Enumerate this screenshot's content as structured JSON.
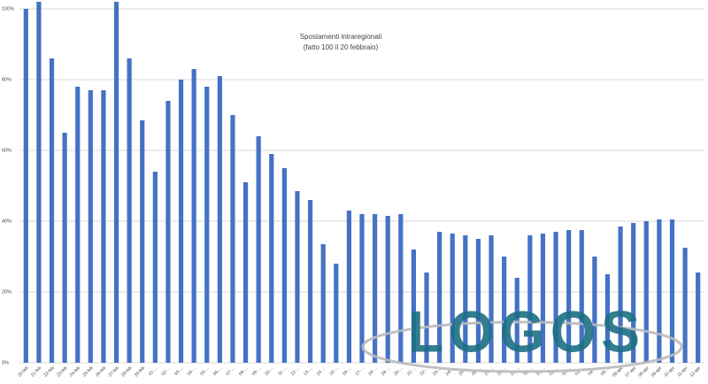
{
  "chart_data": {
    "type": "bar",
    "title": "Spostamenti intraregionali",
    "subtitle": "(fatto 100 il 20 febbraio)",
    "watermark": "LOGOS",
    "categories": [
      "20-feb",
      "21-feb",
      "22-feb",
      "23-feb",
      "24-feb",
      "25-feb",
      "26-feb",
      "27-feb",
      "28-feb",
      "29-feb",
      "01-…",
      "02-…",
      "03-…",
      "04-…",
      "05-…",
      "06-…",
      "07-…",
      "08-…",
      "09-…",
      "10-…",
      "11-…",
      "12-…",
      "13-…",
      "14-…",
      "15-…",
      "16-…",
      "17-…",
      "18-…",
      "19-…",
      "20-…",
      "21-…",
      "22-…",
      "23-…",
      "24-…",
      "25-…",
      "26-…",
      "27-…",
      "28-…",
      "29-…",
      "30-…",
      "31-…",
      "01-…",
      "02-…",
      "03-…",
      "04-…",
      "05-…",
      "06-apr",
      "07-apr",
      "08-apr",
      "09-apr",
      "10-apr",
      "11-apr",
      "12-apr"
    ],
    "values": [
      100,
      102,
      86,
      65,
      78,
      77,
      77,
      102,
      86,
      68.5,
      54,
      74,
      80,
      83,
      78,
      81,
      70,
      51,
      64,
      59,
      55,
      48.5,
      46,
      33.5,
      28,
      43,
      42,
      42,
      41.5,
      42,
      32,
      25.5,
      37,
      36.5,
      36,
      35,
      36,
      30,
      24,
      36,
      36.5,
      37,
      37.5,
      37.5,
      30,
      25,
      38.5,
      39.5,
      40,
      40.5,
      40.5,
      32.5,
      25.5
    ],
    "color": "#4472c4",
    "ylim": [
      0,
      102
    ],
    "yticks": [
      {
        "value": 0,
        "label": "0%"
      },
      {
        "value": 20,
        "label": "20%"
      },
      {
        "value": 40,
        "label": "40%"
      },
      {
        "value": 60,
        "label": "60%"
      },
      {
        "value": 80,
        "label": "80%"
      },
      {
        "value": 100,
        "label": "100%"
      }
    ],
    "grid": true
  }
}
